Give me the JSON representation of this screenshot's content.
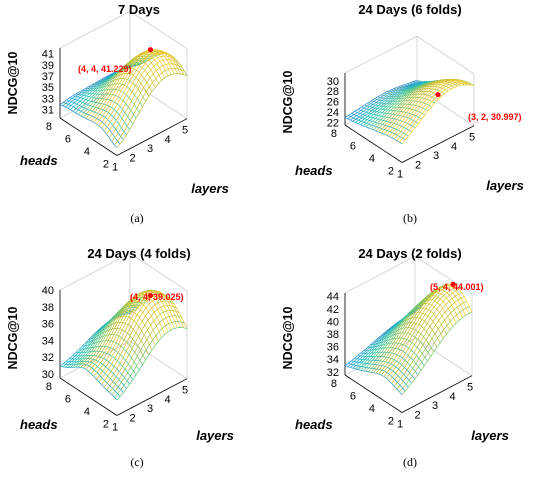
{
  "chart_data": [
    {
      "type": "surface",
      "panel_label": "(a)",
      "title": "7 Days",
      "xlabel": "layers",
      "ylabel": "heads",
      "zlabel": "NDCG@10",
      "x_ticks": [
        1,
        2,
        3,
        4,
        5
      ],
      "y_ticks": [
        2,
        4,
        6,
        8
      ],
      "z_ticks": [
        31,
        33,
        35,
        37,
        39,
        41
      ],
      "zlim": [
        29.5,
        42
      ],
      "peak": {
        "layers": 4,
        "heads": 4,
        "ndcg": 41.229
      },
      "annotation": "(4, 4, 41.229)"
    },
    {
      "type": "surface",
      "panel_label": "(b)",
      "title": "24 Days (6 folds)",
      "xlabel": "layers",
      "ylabel": "heads",
      "zlabel": "NDCG@10",
      "x_ticks": [
        1,
        2,
        3,
        4,
        5
      ],
      "y_ticks": [
        2,
        4,
        6,
        8
      ],
      "z_ticks": [
        22,
        24,
        26,
        28,
        30
      ],
      "zlim": [
        21.5,
        31.5
      ],
      "peak": {
        "layers": 3,
        "heads": 2,
        "ndcg": 30.997
      },
      "annotation": "(3, 2, 30.997)"
    },
    {
      "type": "surface",
      "panel_label": "(c)",
      "title": "24 Days (4 folds)",
      "xlabel": "layers",
      "ylabel": "heads",
      "zlabel": "NDCG@10",
      "x_ticks": [
        1,
        2,
        3,
        4,
        5
      ],
      "y_ticks": [
        2,
        4,
        6,
        8
      ],
      "z_ticks": [
        30,
        32,
        34,
        36,
        38,
        40
      ],
      "zlim": [
        29.5,
        40
      ],
      "peak": {
        "layers": 4,
        "heads": 4,
        "ndcg": 39.025
      },
      "annotation": "(4, 4, 39.025)"
    },
    {
      "type": "surface",
      "panel_label": "(d)",
      "title": "24 Days (2 folds)",
      "xlabel": "layers",
      "ylabel": "heads",
      "zlabel": "NDCG@10",
      "x_ticks": [
        1,
        2,
        3,
        4,
        5
      ],
      "y_ticks": [
        2,
        4,
        6,
        8
      ],
      "z_ticks": [
        32,
        34,
        36,
        38,
        40,
        42,
        44
      ],
      "zlim": [
        31.5,
        44.5
      ],
      "peak": {
        "layers": 5,
        "heads": 4,
        "ndcg": 44.001
      },
      "annotation": "(5, 4, 44.001)"
    }
  ],
  "colors": {
    "colormap": [
      "#3e26a8",
      "#2f6ef2",
      "#12b5cb",
      "#4fcb8b",
      "#c2bc35",
      "#fcce2e",
      "#f9fb15"
    ],
    "peak_marker": "#ff0000",
    "annotation_text": "#ff0000"
  }
}
